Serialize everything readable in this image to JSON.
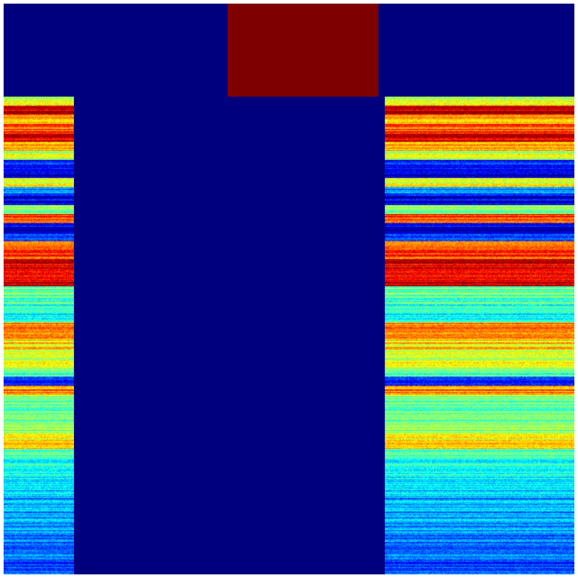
{
  "chart_data": {
    "type": "heatmap",
    "colormap": "jet",
    "value_range": [
      0,
      1
    ],
    "background_value": 0,
    "axes_visible": false,
    "title": "",
    "xlabel": "",
    "ylabel": "",
    "top_block": {
      "value": 1.0,
      "color": "#7f0000"
    },
    "masked_column": {
      "value": 0.0,
      "color": "#00007f"
    },
    "row_profile": [
      0.6,
      0.95,
      0.7,
      0.8,
      0.88,
      0.7,
      0.55,
      0.15,
      0.1,
      0.6,
      0.25,
      0.12,
      0.5,
      0.82,
      0.1,
      0.15,
      0.75,
      0.8,
      0.9,
      0.85,
      0.9,
      0.5,
      0.45,
      0.4,
      0.4,
      0.75,
      0.7,
      0.65,
      0.62,
      0.6,
      0.45,
      0.2,
      0.75,
      0.5,
      0.45,
      0.45,
      0.5,
      0.6,
      0.68,
      0.45,
      0.4,
      0.42,
      0.38,
      0.32,
      0.3,
      0.3,
      0.28,
      0.27,
      0.25,
      0.25,
      0.22,
      0.2,
      0.22
    ]
  }
}
